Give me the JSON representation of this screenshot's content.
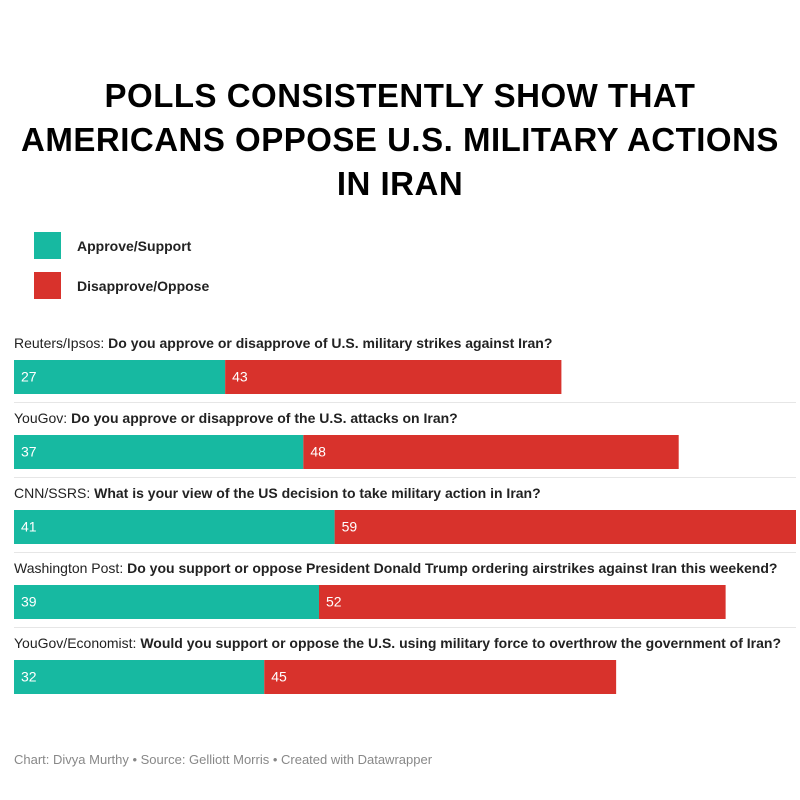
{
  "chart_data": {
    "type": "bar",
    "orientation": "horizontal",
    "stacked": true,
    "title": "POLLS CONSISTENTLY SHOW THAT AMERICANS OPPOSE U.S. MILITARY ACTIONS IN IRAN",
    "categories": [
      "Reuters/Ipsos:",
      "YouGov:",
      "CNN/SSRS:",
      "Washington Post:",
      "YouGov/Economist:"
    ],
    "questions": [
      "Do you approve or disapprove of U.S. military strikes against Iran?",
      "Do you approve or disapprove of the U.S. attacks on Iran?",
      "What is your view of the US decision to take military action in Iran?",
      "Do you support or oppose President Donald Trump ordering airstrikes against Iran this weekend?",
      "Would you support or oppose the U.S. using military force to overthrow the government of Iran?"
    ],
    "series": [
      {
        "name": "Approve/Support",
        "color": "#17b9a1",
        "values": [
          27,
          37,
          41,
          39,
          32
        ]
      },
      {
        "name": "Disapprove/Oppose",
        "color": "#d8322c",
        "values": [
          43,
          48,
          59,
          52,
          45
        ]
      }
    ],
    "xlim": [
      0,
      100
    ],
    "footer": "Chart: Divya Murthy • Source: Gelliott Morris • Created with Datawrapper"
  }
}
